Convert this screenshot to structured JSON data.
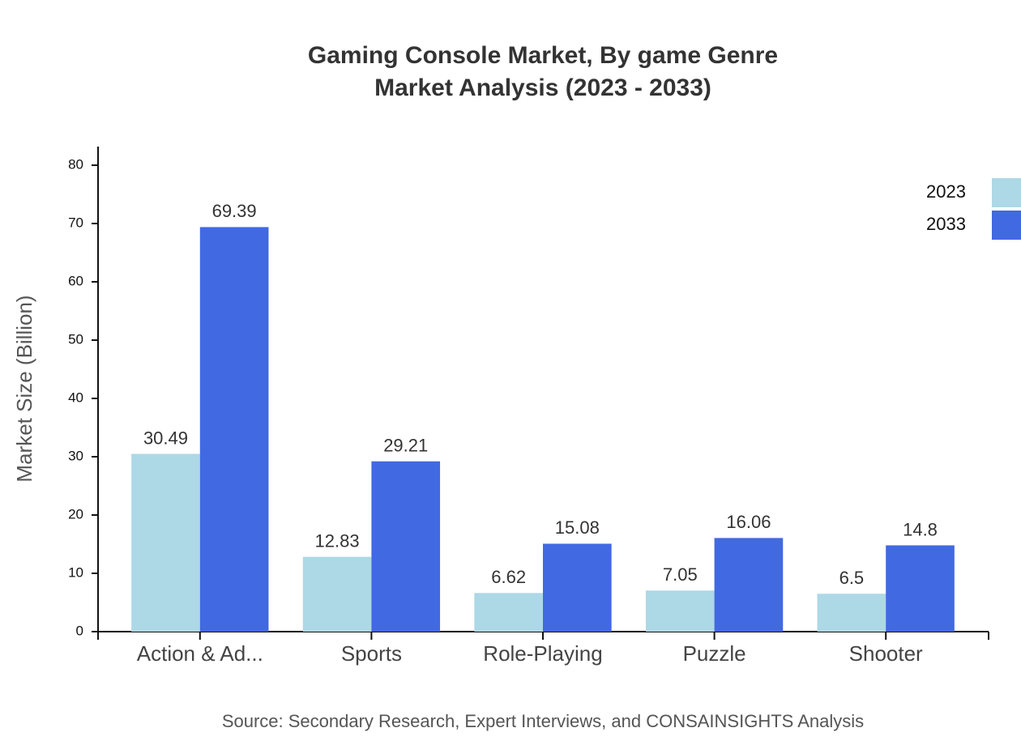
{
  "chart_data": {
    "type": "bar",
    "title": "Gaming Console Market, By game Genre",
    "subtitle": "Market Analysis (2023 - 2033)",
    "y_label": "Market Size (Billion)",
    "source": "Source: Secondary Research, Expert Interviews, and CONSAINSIGHTS Analysis",
    "categories": [
      "Action & Ad...",
      "Sports",
      "Role-Playing",
      "Puzzle",
      "Shooter"
    ],
    "series": [
      {
        "name": "2023",
        "color": "#add8e6",
        "values": [
          30.49,
          12.83,
          6.62,
          7.05,
          6.5
        ]
      },
      {
        "name": "2033",
        "color": "#4169e1",
        "values": [
          69.39,
          29.21,
          15.08,
          16.06,
          14.8
        ]
      }
    ],
    "ylim": [
      0,
      83.2
    ],
    "yticks": [
      0,
      10,
      20,
      30,
      40,
      50,
      60,
      70,
      80
    ],
    "legend_position": "upper right",
    "value_labels_shown": true
  }
}
